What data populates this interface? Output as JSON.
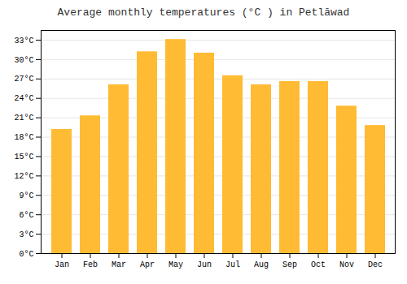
{
  "chart_data": {
    "type": "bar",
    "title": "Average monthly temperatures (°C ) in Petlāwad",
    "categories": [
      "Jan",
      "Feb",
      "Mar",
      "Apr",
      "May",
      "Jun",
      "Jul",
      "Aug",
      "Sep",
      "Oct",
      "Nov",
      "Dec"
    ],
    "values": [
      19.2,
      21.3,
      26.1,
      31.2,
      33.1,
      31.0,
      27.5,
      26.1,
      26.6,
      26.6,
      22.8,
      19.8
    ],
    "color": "#FFBB33",
    "ylim": [
      0,
      34.5
    ],
    "yticks": [
      {
        "value": 0,
        "label": "0°C"
      },
      {
        "value": 3,
        "label": "3°C"
      },
      {
        "value": 6,
        "label": "6°C"
      },
      {
        "value": 9,
        "label": "9°C"
      },
      {
        "value": 12,
        "label": "12°C"
      },
      {
        "value": 15,
        "label": "15°C"
      },
      {
        "value": 18,
        "label": "18°C"
      },
      {
        "value": 21,
        "label": "21°C"
      },
      {
        "value": 24,
        "label": "24°C"
      },
      {
        "value": 27,
        "label": "27°C"
      },
      {
        "value": 30,
        "label": "30°C"
      },
      {
        "value": 33,
        "label": "33°C"
      }
    ],
    "grid": true
  }
}
